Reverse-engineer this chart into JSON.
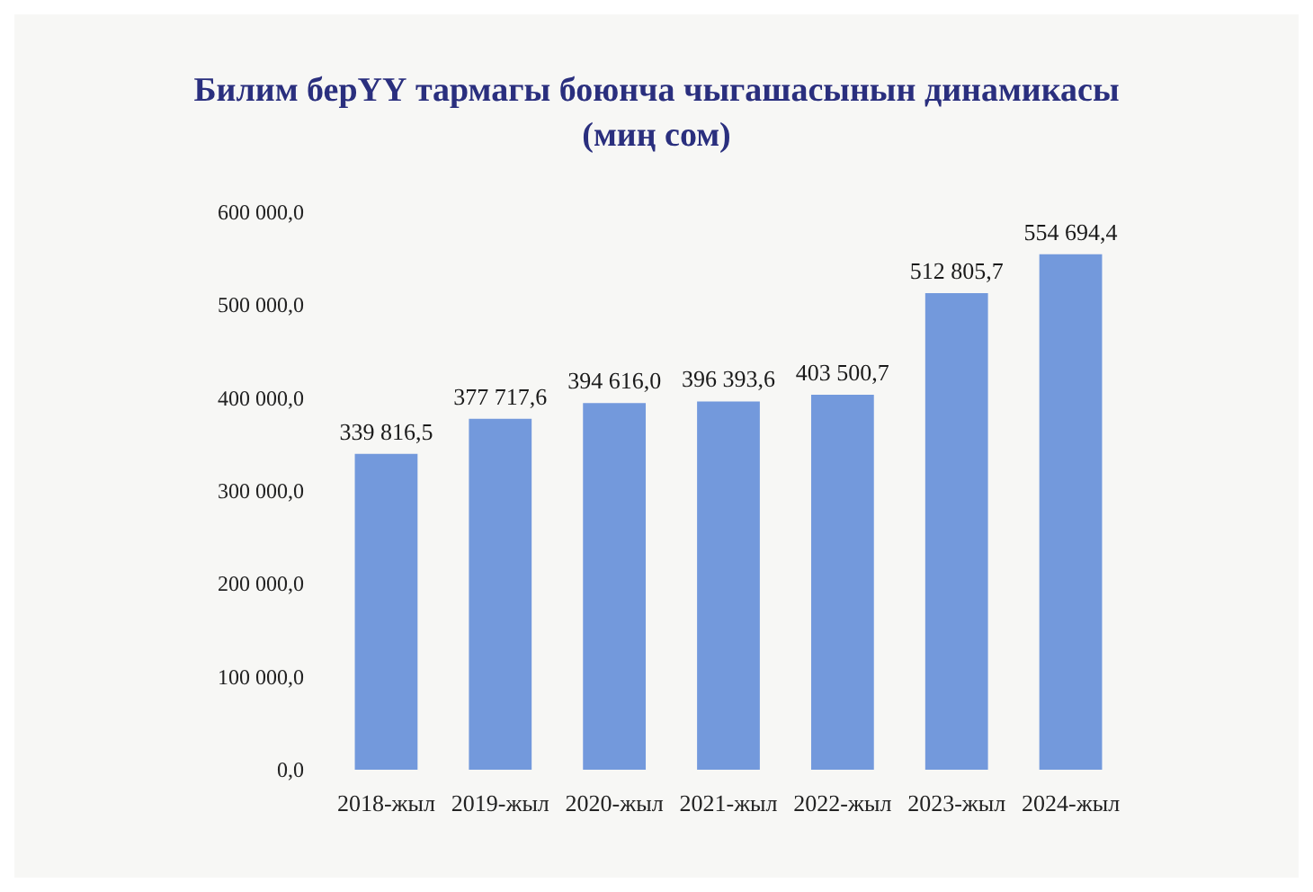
{
  "chart_data": {
    "type": "bar",
    "title": "Билим берҮҮ тармагы боюнча чыгашасынын динамикасы",
    "subtitle": "(миң сом)",
    "categories": [
      "2018-жыл",
      "2019-жыл",
      "2020-жыл",
      "2021-жыл",
      "2022-жыл",
      "2023-жыл",
      "2024-жыл"
    ],
    "values": [
      339816.5,
      377717.6,
      394616.0,
      396393.6,
      403500.7,
      512805.7,
      554694.4
    ],
    "value_labels": [
      "339 816,5",
      "377 717,6",
      "394 616,0",
      "396 393,6",
      "403 500,7",
      "512 805,7",
      "554 694,4"
    ],
    "color": "#7399dc",
    "ylim": [
      0,
      600000
    ],
    "yticks": [
      {
        "value": 0,
        "label": "0,0"
      },
      {
        "value": 100000,
        "label": "100 000,0"
      },
      {
        "value": 200000,
        "label": "200 000,0"
      },
      {
        "value": 300000,
        "label": "300 000,0"
      },
      {
        "value": 400000,
        "label": "400 000,0"
      },
      {
        "value": 500000,
        "label": "500 000,0"
      },
      {
        "value": 600000,
        "label": "600 000,0"
      }
    ]
  }
}
